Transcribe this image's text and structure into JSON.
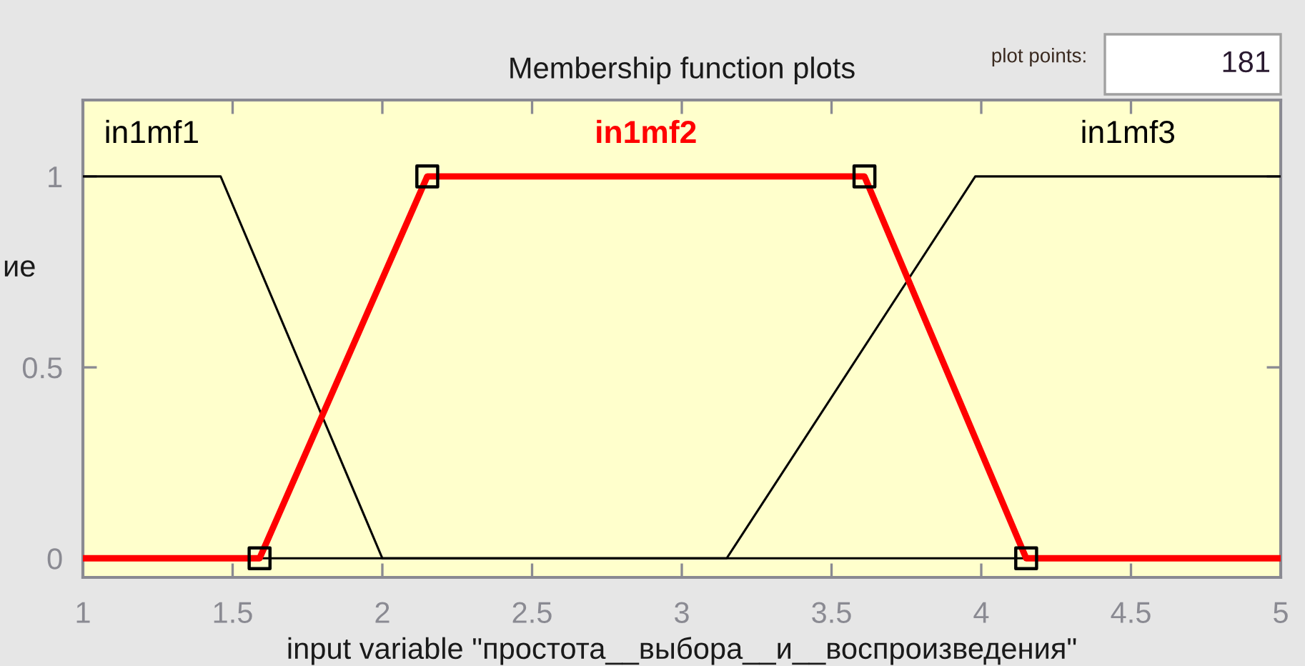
{
  "chart_data": {
    "type": "line",
    "title": "Membership function plots",
    "xlabel": "input variable \"простота__выбора__и__воспроизведения\"",
    "ylabel": "ие",
    "annotations": [
      "plot points:",
      "181"
    ],
    "xlim": [
      1,
      5
    ],
    "ylim": [
      -0.05,
      1.2
    ],
    "xticks": [
      1,
      1.5,
      2,
      2.5,
      3,
      3.5,
      4,
      4.5,
      5
    ],
    "yticks": [
      0,
      0.5,
      1
    ],
    "series": [
      {
        "name": "in1mf1",
        "color": "#000000",
        "x": [
          1,
          1.46,
          2,
          5
        ],
        "values": [
          1,
          1,
          0,
          0
        ]
      },
      {
        "name": "in1mf2",
        "color": "#ff0000",
        "x": [
          1,
          1.59,
          2.15,
          3.61,
          4.15,
          5
        ],
        "values": [
          0,
          0,
          1,
          1,
          0,
          0
        ]
      },
      {
        "name": "in1mf3",
        "color": "#000000",
        "x": [
          1,
          3.15,
          3.98,
          5
        ],
        "values": [
          0,
          0,
          1,
          1
        ]
      },
      {
        "type": "scatter",
        "color": "#000000",
        "marker": "square",
        "x": [
          1.59,
          2.15,
          3.61,
          4.15
        ],
        "values": [
          0,
          1,
          1,
          0
        ]
      }
    ]
  }
}
